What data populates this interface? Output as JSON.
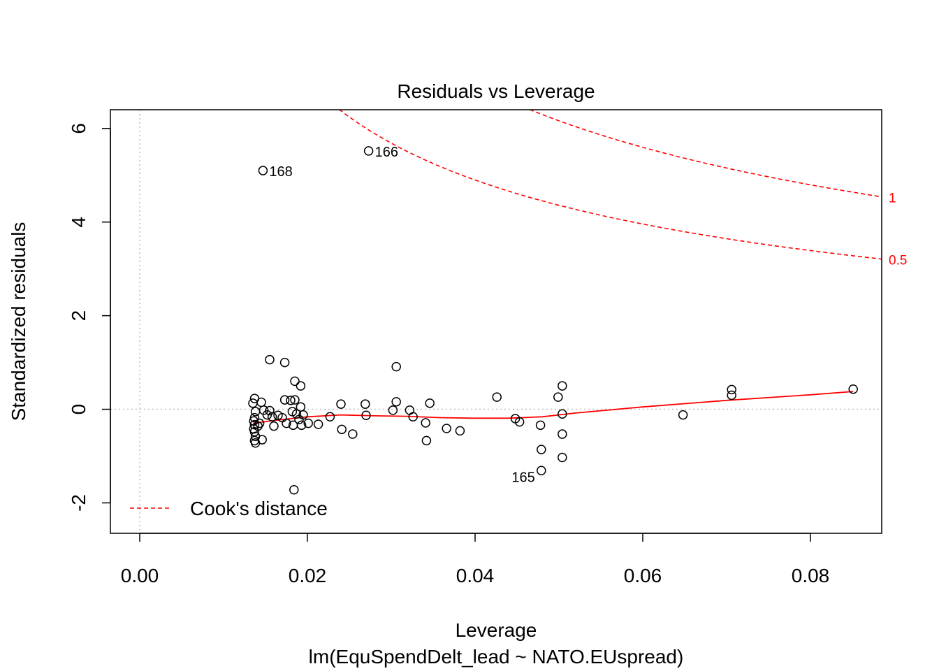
{
  "chart_data": {
    "type": "scatter",
    "title": "Residuals vs Leverage",
    "xlabel": "Leverage",
    "subtitle": "lm(EquSpendDelt_lead ~ NATO.EUspread)",
    "ylabel": "Standardized residuals",
    "xlim": [
      -0.0035,
      0.0885
    ],
    "ylim": [
      -2.65,
      6.4
    ],
    "x_ticks": [
      0.0,
      0.02,
      0.04,
      0.06,
      0.08
    ],
    "x_tick_labels": [
      "0.00",
      "0.02",
      "0.04",
      "0.06",
      "0.08"
    ],
    "y_ticks": [
      -2,
      0,
      2,
      4,
      6
    ],
    "y_tick_labels": [
      "-2",
      "0",
      "2",
      "4",
      "6"
    ],
    "points": [
      [
        0.0135,
        0.13
      ],
      [
        0.0137,
        0.23
      ],
      [
        0.0138,
        -0.05
      ],
      [
        0.0137,
        -0.18
      ],
      [
        0.0136,
        -0.25
      ],
      [
        0.0137,
        -0.33
      ],
      [
        0.0136,
        -0.42
      ],
      [
        0.0137,
        -0.48
      ],
      [
        0.0138,
        -0.58
      ],
      [
        0.0137,
        -0.67
      ],
      [
        0.0138,
        -0.72
      ],
      [
        0.0141,
        -0.36
      ],
      [
        0.0143,
        -0.3
      ],
      [
        0.0145,
        0.15
      ],
      [
        0.0146,
        -0.65
      ],
      [
        0.0148,
        -0.02
      ],
      [
        0.0152,
        -0.12
      ],
      [
        0.0155,
        -0.03
      ],
      [
        0.0158,
        -0.16
      ],
      [
        0.016,
        -0.36
      ],
      [
        0.0165,
        -0.13
      ],
      [
        0.017,
        -0.18
      ],
      [
        0.0173,
        0.2
      ],
      [
        0.0175,
        -0.3
      ],
      [
        0.018,
        0.19
      ],
      [
        0.0182,
        -0.05
      ],
      [
        0.0183,
        -0.34
      ],
      [
        0.0185,
        0.2
      ],
      [
        0.0187,
        -0.1
      ],
      [
        0.019,
        -0.22
      ],
      [
        0.0192,
        0.05
      ],
      [
        0.0193,
        -0.34
      ],
      [
        0.0195,
        -0.12
      ],
      [
        0.0201,
        -0.3
      ],
      [
        0.0213,
        -0.32
      ],
      [
        0.0227,
        -0.16
      ],
      [
        0.024,
        0.11
      ],
      [
        0.0241,
        -0.43
      ],
      [
        0.0254,
        -0.53
      ],
      [
        0.0269,
        0.11
      ],
      [
        0.027,
        -0.13
      ],
      [
        0.0302,
        -0.02
      ],
      [
        0.0306,
        0.16
      ],
      [
        0.0322,
        -0.02
      ],
      [
        0.0326,
        -0.16
      ],
      [
        0.0341,
        -0.29
      ],
      [
        0.0342,
        -0.67
      ],
      [
        0.0346,
        0.13
      ],
      [
        0.0366,
        -0.41
      ],
      [
        0.0382,
        -0.46
      ],
      [
        0.0426,
        0.26
      ],
      [
        0.0448,
        -0.2
      ],
      [
        0.0453,
        -0.27
      ],
      [
        0.0478,
        -0.34
      ],
      [
        0.0479,
        -0.86
      ],
      [
        0.0499,
        0.26
      ],
      [
        0.0504,
        0.5
      ],
      [
        0.0504,
        -0.1
      ],
      [
        0.0504,
        -0.53
      ],
      [
        0.0504,
        -1.03
      ],
      [
        0.0648,
        -0.12
      ],
      [
        0.0706,
        0.42
      ],
      [
        0.0706,
        0.3
      ],
      [
        0.0851,
        0.43
      ],
      [
        0.0155,
        1.06
      ],
      [
        0.0173,
        1.0
      ],
      [
        0.0185,
        0.6
      ],
      [
        0.0192,
        0.5
      ],
      [
        0.0306,
        0.91
      ],
      [
        0.0184,
        -1.72
      ]
    ],
    "labeled_points": [
      {
        "label": "168",
        "x": 0.0147,
        "y": 5.1
      },
      {
        "label": "166",
        "x": 0.0273,
        "y": 5.52
      },
      {
        "label": "165",
        "x": 0.0479,
        "y": -1.31
      }
    ],
    "smooth_line": {
      "x": [
        0.0135,
        0.016,
        0.02,
        0.024,
        0.028,
        0.032,
        0.036,
        0.04,
        0.044,
        0.048,
        0.052,
        0.06,
        0.07,
        0.08,
        0.0851
      ],
      "y": [
        -0.3,
        -0.24,
        -0.16,
        -0.12,
        -0.14,
        -0.15,
        -0.18,
        -0.19,
        -0.19,
        -0.16,
        -0.08,
        0.05,
        0.19,
        0.31,
        0.38
      ]
    },
    "cooks_contours": [
      {
        "label": "1",
        "level": 1
      },
      {
        "label": "0.5",
        "level": 0.5
      }
    ],
    "legend": {
      "label": "Cook's distance",
      "position": "bottom-left"
    },
    "colors": {
      "points": "#000000",
      "smooth": "#ff0000",
      "cooks": "#ff0000",
      "reference": "#bdbdbd"
    }
  }
}
